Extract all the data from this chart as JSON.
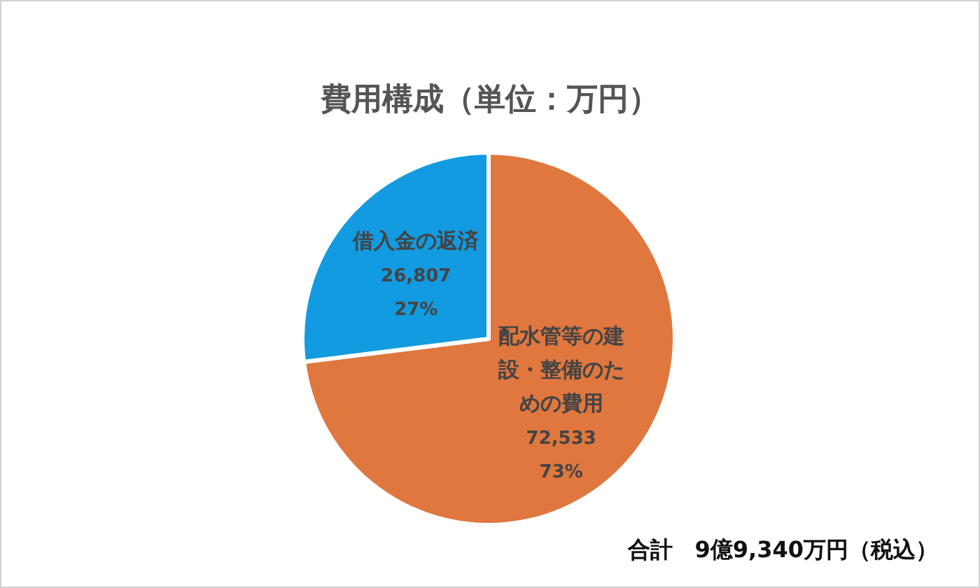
{
  "chart_data": {
    "type": "pie",
    "title": "費用構成（単位：万円）",
    "categories": [
      "配水管等の建設・整備のための費用",
      "借入金の返済"
    ],
    "values": [
      72533,
      26807
    ],
    "colors": [
      "#e0773f",
      "#129be0"
    ],
    "value_labels": [
      "72,533\n73%",
      "26,807\n27%"
    ],
    "annotations": [
      "合計　9億9,340万円（税込）"
    ]
  }
}
